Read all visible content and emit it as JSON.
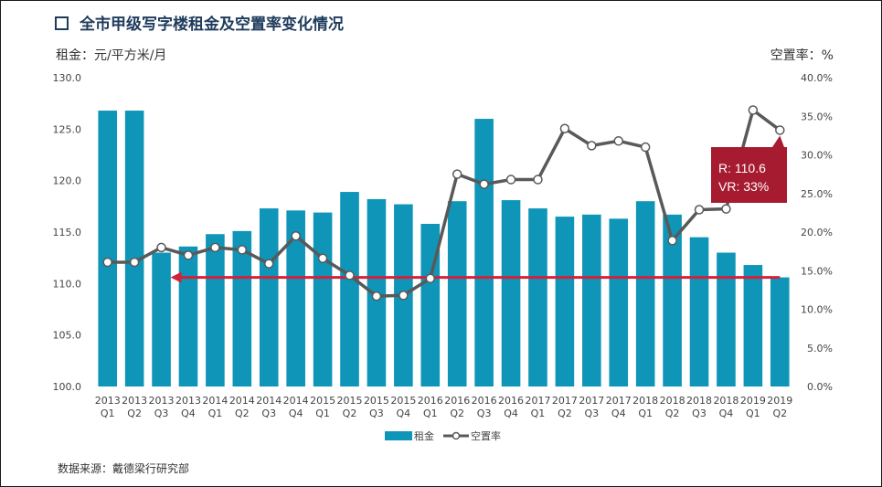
{
  "title": "全市甲级写字楼租金及空置率变化情况",
  "left_axis_label": "租金：元/平方米/月",
  "right_axis_label": "空置率：%",
  "source": "数据来源：戴德梁行研究部",
  "colors": {
    "bar": "#0e95b8",
    "line": "#595959",
    "arrow": "#d6203a",
    "annotation": "#a61b2f",
    "title": "#1f3b5c"
  },
  "chart_data": {
    "type": "bar",
    "categories": [
      [
        "2013",
        "Q1"
      ],
      [
        "2013",
        "Q2"
      ],
      [
        "2013",
        "Q3"
      ],
      [
        "2013",
        "Q4"
      ],
      [
        "2014",
        "Q1"
      ],
      [
        "2014",
        "Q2"
      ],
      [
        "2014",
        "Q3"
      ],
      [
        "2014",
        "Q4"
      ],
      [
        "2015",
        "Q1"
      ],
      [
        "2015",
        "Q2"
      ],
      [
        "2015",
        "Q3"
      ],
      [
        "2015",
        "Q4"
      ],
      [
        "2016",
        "Q1"
      ],
      [
        "2016",
        "Q2"
      ],
      [
        "2016",
        "Q3"
      ],
      [
        "2016",
        "Q4"
      ],
      [
        "2017",
        "Q1"
      ],
      [
        "2017",
        "Q2"
      ],
      [
        "2017",
        "Q3"
      ],
      [
        "2017",
        "Q4"
      ],
      [
        "2018",
        "Q1"
      ],
      [
        "2018",
        "Q2"
      ],
      [
        "2018",
        "Q3"
      ],
      [
        "2018",
        "Q4"
      ],
      [
        "2019",
        "Q1"
      ],
      [
        "2019",
        "Q2"
      ]
    ],
    "series": [
      {
        "name": "租金",
        "type": "bar",
        "axis": "left",
        "values": [
          126.8,
          126.8,
          113.0,
          113.6,
          114.8,
          115.1,
          117.3,
          117.1,
          116.9,
          118.9,
          118.2,
          117.7,
          115.8,
          118.0,
          126.0,
          118.1,
          117.3,
          116.5,
          116.7,
          116.3,
          118.0,
          116.7,
          114.5,
          113.0,
          111.8,
          110.6
        ]
      },
      {
        "name": "空置率",
        "type": "line",
        "axis": "right",
        "values": [
          16.1,
          16.1,
          18.0,
          17.0,
          18.0,
          17.7,
          15.9,
          19.5,
          16.6,
          14.4,
          11.7,
          11.8,
          14.0,
          27.5,
          26.2,
          26.8,
          26.8,
          33.4,
          31.2,
          31.8,
          31.0,
          18.9,
          22.9,
          23.0,
          35.8,
          33.2
        ]
      }
    ],
    "y_left": {
      "min": 100,
      "max": 130,
      "ticks": [
        "100.0",
        "105.0",
        "110.0",
        "115.0",
        "120.0",
        "125.0",
        "130.0"
      ]
    },
    "y_right": {
      "min": 0,
      "max": 40,
      "ticks": [
        "0.0%",
        "5.0%",
        "10.0%",
        "15.0%",
        "20.0%",
        "25.0%",
        "30.0%",
        "35.0%",
        "40.0%"
      ]
    },
    "reference_arrow": {
      "value": 110.6,
      "from_index": 25,
      "to_index": 2
    },
    "annotation": {
      "line1": "R: 110.6",
      "line2": "VR: 33%",
      "index": 25
    },
    "legend": [
      {
        "label": "租金",
        "kind": "bar"
      },
      {
        "label": "空置率",
        "kind": "line"
      }
    ],
    "legend_position": "bottom"
  }
}
